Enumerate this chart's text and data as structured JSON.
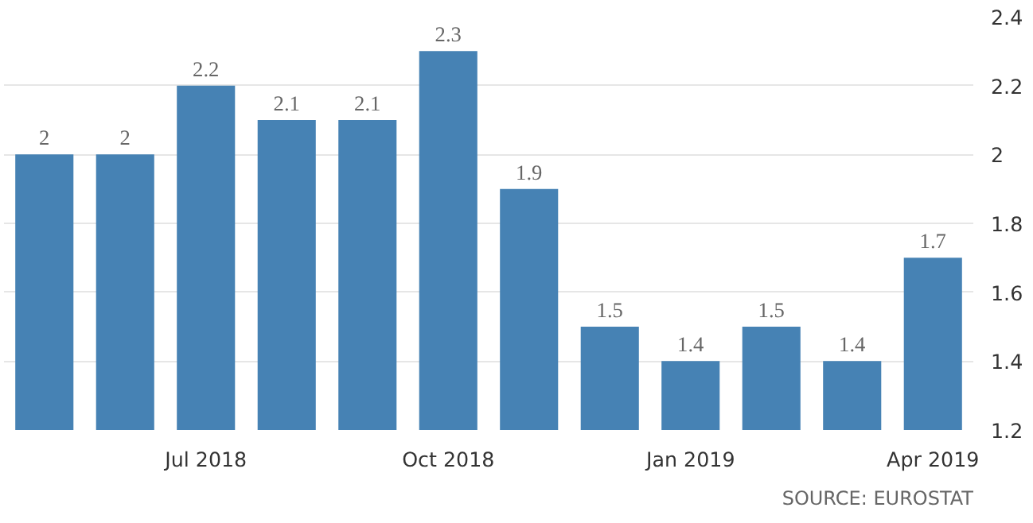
{
  "chart_data": {
    "type": "bar",
    "categories": [
      null,
      null,
      "Jul 2018",
      null,
      null,
      "Oct 2018",
      null,
      null,
      "Jan 2019",
      null,
      null,
      "Apr 2019"
    ],
    "values": [
      2,
      2,
      2.2,
      2.1,
      2.1,
      2.3,
      1.9,
      1.5,
      1.4,
      1.5,
      1.4,
      1.7
    ],
    "color": "#4682b4",
    "ylim": [
      1.2,
      2.4
    ],
    "yticks": [
      1.2,
      1.4,
      1.6,
      1.8,
      2,
      2.2,
      2.4
    ],
    "grid": "y",
    "data_labels": true,
    "annotations": [
      "SOURCE: EUROSTAT"
    ]
  }
}
